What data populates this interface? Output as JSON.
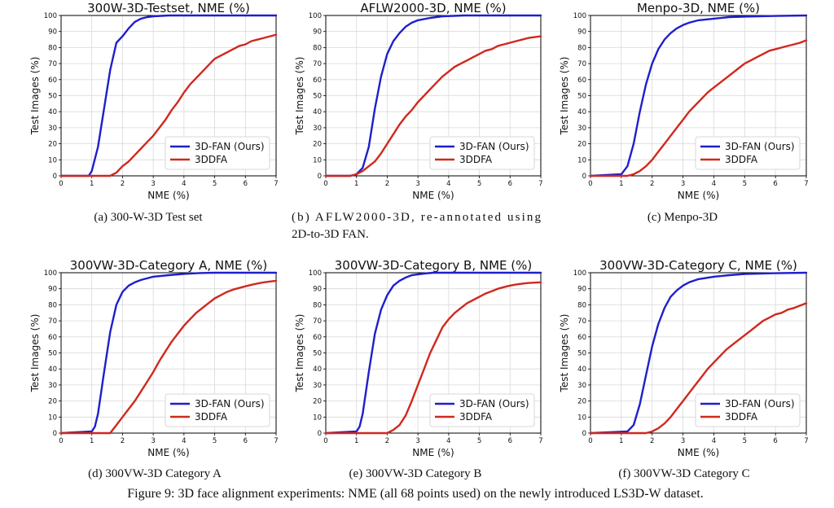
{
  "figure": {
    "caption": "Figure 9: 3D face alignment experiments: NME (all 68 points used) on the newly introduced LS3D-W dataset."
  },
  "colors": {
    "ours": "#1f1fcc",
    "baseline": "#d0281e"
  },
  "chart_data": [
    {
      "type": "line",
      "title": "300W-3D-Testset, NME (%)",
      "xlabel": "NME (%)",
      "ylabel": "Test Images (%)",
      "xlim": [
        0,
        7
      ],
      "ylim": [
        0,
        100
      ],
      "xticks": [
        "0",
        "1",
        "2",
        "3",
        "4",
        "5",
        "6",
        "7"
      ],
      "yticks": [
        "0",
        "10",
        "20",
        "30",
        "40",
        "50",
        "60",
        "70",
        "80",
        "90",
        "100"
      ],
      "grid": true,
      "legend": "lower-right",
      "caption": "(a) 300-W-3D Test set",
      "series": [
        {
          "name": "3D-FAN (Ours)",
          "x": [
            0,
            0.9,
            1.0,
            1.2,
            1.4,
            1.6,
            1.8,
            2.0,
            2.2,
            2.4,
            2.6,
            2.8,
            3.0,
            3.5,
            7
          ],
          "y": [
            0,
            0,
            3,
            18,
            42,
            66,
            83,
            87,
            92,
            96,
            98,
            99,
            99.5,
            100,
            100
          ]
        },
        {
          "name": "3DDFA",
          "x": [
            0,
            1.6,
            1.8,
            2.0,
            2.2,
            2.4,
            2.6,
            2.8,
            3.0,
            3.2,
            3.4,
            3.6,
            3.8,
            4.0,
            4.2,
            4.4,
            4.6,
            4.8,
            5.0,
            5.2,
            5.4,
            5.6,
            5.8,
            6.0,
            6.2,
            6.4,
            6.6,
            6.8,
            7.0
          ],
          "y": [
            0,
            0,
            2,
            6,
            9,
            13,
            17,
            21,
            25,
            30,
            35,
            41,
            46,
            52,
            57,
            61,
            65,
            69,
            73,
            75,
            77,
            79,
            81,
            82,
            84,
            85,
            86,
            87,
            88
          ]
        }
      ]
    },
    {
      "type": "line",
      "title": "AFLW2000-3D, NME (%)",
      "xlabel": "NME (%)",
      "ylabel": "Test Images (%)",
      "xlim": [
        0,
        7
      ],
      "ylim": [
        0,
        100
      ],
      "xticks": [
        "0",
        "1",
        "2",
        "3",
        "4",
        "5",
        "6",
        "7"
      ],
      "yticks": [
        "0",
        "10",
        "20",
        "30",
        "40",
        "50",
        "60",
        "70",
        "80",
        "90",
        "100"
      ],
      "grid": true,
      "legend": "lower-right",
      "caption": "(b)  AFLW2000-3D, re-annotated using 2D-to-3D FAN.",
      "series": [
        {
          "name": "3D-FAN (Ours)",
          "x": [
            0,
            0.8,
            1.0,
            1.2,
            1.4,
            1.6,
            1.8,
            2.0,
            2.2,
            2.4,
            2.6,
            2.8,
            3.0,
            3.4,
            3.8,
            4.5,
            7
          ],
          "y": [
            0,
            0,
            1,
            5,
            18,
            42,
            62,
            76,
            84,
            89,
            93,
            95.5,
            97,
            98.5,
            99.5,
            100,
            100
          ]
        },
        {
          "name": "3DDFA",
          "x": [
            0,
            0.8,
            1.0,
            1.2,
            1.4,
            1.6,
            1.8,
            2.0,
            2.2,
            2.4,
            2.6,
            2.8,
            3.0,
            3.2,
            3.4,
            3.6,
            3.8,
            4.0,
            4.2,
            4.4,
            4.6,
            4.8,
            5.0,
            5.2,
            5.4,
            5.6,
            5.8,
            6.0,
            6.2,
            6.4,
            6.6,
            6.8,
            7.0
          ],
          "y": [
            0,
            0,
            1,
            3,
            6,
            9,
            14,
            20,
            26,
            32,
            37,
            41,
            46,
            50,
            54,
            58,
            62,
            65,
            68,
            70,
            72,
            74,
            76,
            78,
            79,
            81,
            82,
            83,
            84,
            85,
            86,
            86.5,
            87
          ]
        }
      ]
    },
    {
      "type": "line",
      "title": "Menpo-3D, NME (%)",
      "xlabel": "NME (%)",
      "ylabel": "Test Images (%)",
      "xlim": [
        0,
        7
      ],
      "ylim": [
        0,
        100
      ],
      "xticks": [
        "0",
        "1",
        "2",
        "3",
        "4",
        "5",
        "6",
        "7"
      ],
      "yticks": [
        "0",
        "10",
        "20",
        "30",
        "40",
        "50",
        "60",
        "70",
        "80",
        "90",
        "100"
      ],
      "grid": true,
      "legend": "lower-right",
      "caption": "(c) Menpo-3D",
      "series": [
        {
          "name": "3D-FAN (Ours)",
          "x": [
            0,
            1.0,
            1.2,
            1.4,
            1.6,
            1.8,
            2.0,
            2.2,
            2.4,
            2.6,
            2.8,
            3.0,
            3.2,
            3.5,
            4.0,
            4.5,
            5.0,
            6.0,
            7.0
          ],
          "y": [
            0,
            1,
            6,
            20,
            40,
            57,
            70,
            79,
            85,
            89,
            92,
            94,
            95.5,
            97,
            98,
            99,
            99.3,
            99.7,
            100
          ]
        },
        {
          "name": "3DDFA",
          "x": [
            0,
            1.2,
            1.4,
            1.6,
            1.8,
            2.0,
            2.2,
            2.4,
            2.6,
            2.8,
            3.0,
            3.2,
            3.4,
            3.6,
            3.8,
            4.0,
            4.2,
            4.4,
            4.6,
            4.8,
            5.0,
            5.2,
            5.4,
            5.6,
            5.8,
            6.0,
            6.2,
            6.4,
            6.6,
            6.8,
            7.0
          ],
          "y": [
            0,
            0,
            1,
            3,
            6,
            10,
            15,
            20,
            25,
            30,
            35,
            40,
            44,
            48,
            52,
            55,
            58,
            61,
            64,
            67,
            70,
            72,
            74,
            76,
            78,
            79,
            80,
            81,
            82,
            83,
            84.5
          ]
        }
      ]
    },
    {
      "type": "line",
      "title": "300VW-3D-Category A, NME (%)",
      "xlabel": "NME (%)",
      "ylabel": "Test Images (%)",
      "xlim": [
        0,
        7
      ],
      "ylim": [
        0,
        100
      ],
      "xticks": [
        "0",
        "1",
        "2",
        "3",
        "4",
        "5",
        "6",
        "7"
      ],
      "yticks": [
        "0",
        "10",
        "20",
        "30",
        "40",
        "50",
        "60",
        "70",
        "80",
        "90",
        "100"
      ],
      "grid": true,
      "legend": "lower-right",
      "caption": "(d) 300VW-3D Category A",
      "series": [
        {
          "name": "3D-FAN (Ours)",
          "x": [
            0,
            1.0,
            1.1,
            1.2,
            1.4,
            1.6,
            1.8,
            2.0,
            2.2,
            2.4,
            2.6,
            2.8,
            3.0,
            3.5,
            4.0,
            4.5,
            5.0,
            7.0
          ],
          "y": [
            0,
            1,
            4,
            12,
            38,
            63,
            80,
            88,
            92,
            94,
            95.5,
            96.5,
            97.5,
            98.5,
            99.3,
            99.8,
            100,
            100
          ]
        },
        {
          "name": "3DDFA",
          "x": [
            0,
            1.6,
            1.8,
            2.0,
            2.2,
            2.4,
            2.6,
            2.8,
            3.0,
            3.2,
            3.4,
            3.6,
            3.8,
            4.0,
            4.2,
            4.4,
            4.6,
            4.8,
            5.0,
            5.2,
            5.4,
            5.6,
            5.8,
            6.0,
            6.2,
            6.4,
            6.6,
            6.8,
            7.0
          ],
          "y": [
            0,
            0,
            5,
            10,
            15,
            20,
            26,
            32,
            38,
            45,
            51,
            57,
            62,
            67,
            71,
            75,
            78,
            81,
            84,
            86,
            88,
            89.5,
            90.5,
            91.5,
            92.5,
            93.3,
            94,
            94.5,
            95
          ]
        }
      ]
    },
    {
      "type": "line",
      "title": "300VW-3D-Category B, NME (%)",
      "xlabel": "NME (%)",
      "ylabel": "Test Images (%)",
      "xlim": [
        0,
        7
      ],
      "ylim": [
        0,
        100
      ],
      "xticks": [
        "0",
        "1",
        "2",
        "3",
        "4",
        "5",
        "6",
        "7"
      ],
      "yticks": [
        "0",
        "10",
        "20",
        "30",
        "40",
        "50",
        "60",
        "70",
        "80",
        "90",
        "100"
      ],
      "grid": true,
      "legend": "lower-right",
      "caption": "(e) 300VW-3D Category B",
      "series": [
        {
          "name": "3D-FAN (Ours)",
          "x": [
            0,
            1.0,
            1.1,
            1.2,
            1.4,
            1.6,
            1.8,
            2.0,
            2.2,
            2.4,
            2.6,
            2.8,
            3.0,
            3.2,
            3.5,
            4.0,
            7.0
          ],
          "y": [
            0,
            1,
            4,
            12,
            38,
            62,
            77,
            86,
            92,
            95,
            97,
            98.5,
            99,
            99.5,
            100,
            100,
            100
          ]
        },
        {
          "name": "3DDFA",
          "x": [
            0,
            2.0,
            2.2,
            2.4,
            2.6,
            2.8,
            3.0,
            3.2,
            3.4,
            3.6,
            3.8,
            4.0,
            4.2,
            4.4,
            4.6,
            4.8,
            5.0,
            5.2,
            5.4,
            5.6,
            5.8,
            6.0,
            6.2,
            6.4,
            6.6,
            6.8,
            7.0
          ],
          "y": [
            0,
            0,
            2,
            5,
            11,
            20,
            30,
            40,
            50,
            58,
            66,
            71,
            75,
            78,
            81,
            83,
            85,
            87,
            88.5,
            90,
            91,
            92,
            92.7,
            93.2,
            93.6,
            93.8,
            94
          ]
        }
      ]
    },
    {
      "type": "line",
      "title": "300VW-3D-Category C, NME (%)",
      "xlabel": "NME (%)",
      "ylabel": "Test Images (%)",
      "xlim": [
        0,
        7
      ],
      "ylim": [
        0,
        100
      ],
      "xticks": [
        "0",
        "1",
        "2",
        "3",
        "4",
        "5",
        "6",
        "7"
      ],
      "yticks": [
        "0",
        "10",
        "20",
        "30",
        "40",
        "50",
        "60",
        "70",
        "80",
        "90",
        "100"
      ],
      "grid": true,
      "legend": "lower-right",
      "caption": "(f) 300VW-3D Category C",
      "series": [
        {
          "name": "3D-FAN (Ours)",
          "x": [
            0,
            1.2,
            1.4,
            1.6,
            1.8,
            2.0,
            2.2,
            2.4,
            2.6,
            2.8,
            3.0,
            3.2,
            3.5,
            4.0,
            4.5,
            5.0,
            6.0,
            7.0
          ],
          "y": [
            0,
            1,
            5,
            18,
            36,
            54,
            68,
            78,
            85,
            89,
            92,
            94,
            96,
            97.5,
            98.5,
            99.2,
            99.7,
            100
          ]
        },
        {
          "name": "3DDFA",
          "x": [
            0,
            1.8,
            2.0,
            2.2,
            2.4,
            2.6,
            2.8,
            3.0,
            3.2,
            3.4,
            3.6,
            3.8,
            4.0,
            4.2,
            4.4,
            4.6,
            4.8,
            5.0,
            5.2,
            5.4,
            5.6,
            5.8,
            6.0,
            6.2,
            6.4,
            6.6,
            6.8,
            7.0
          ],
          "y": [
            0,
            0,
            1,
            3,
            6,
            10,
            15,
            20,
            25,
            30,
            35,
            40,
            44,
            48,
            52,
            55,
            58,
            61,
            64,
            67,
            70,
            72,
            74,
            75,
            77,
            78,
            79.5,
            81
          ]
        }
      ]
    }
  ]
}
